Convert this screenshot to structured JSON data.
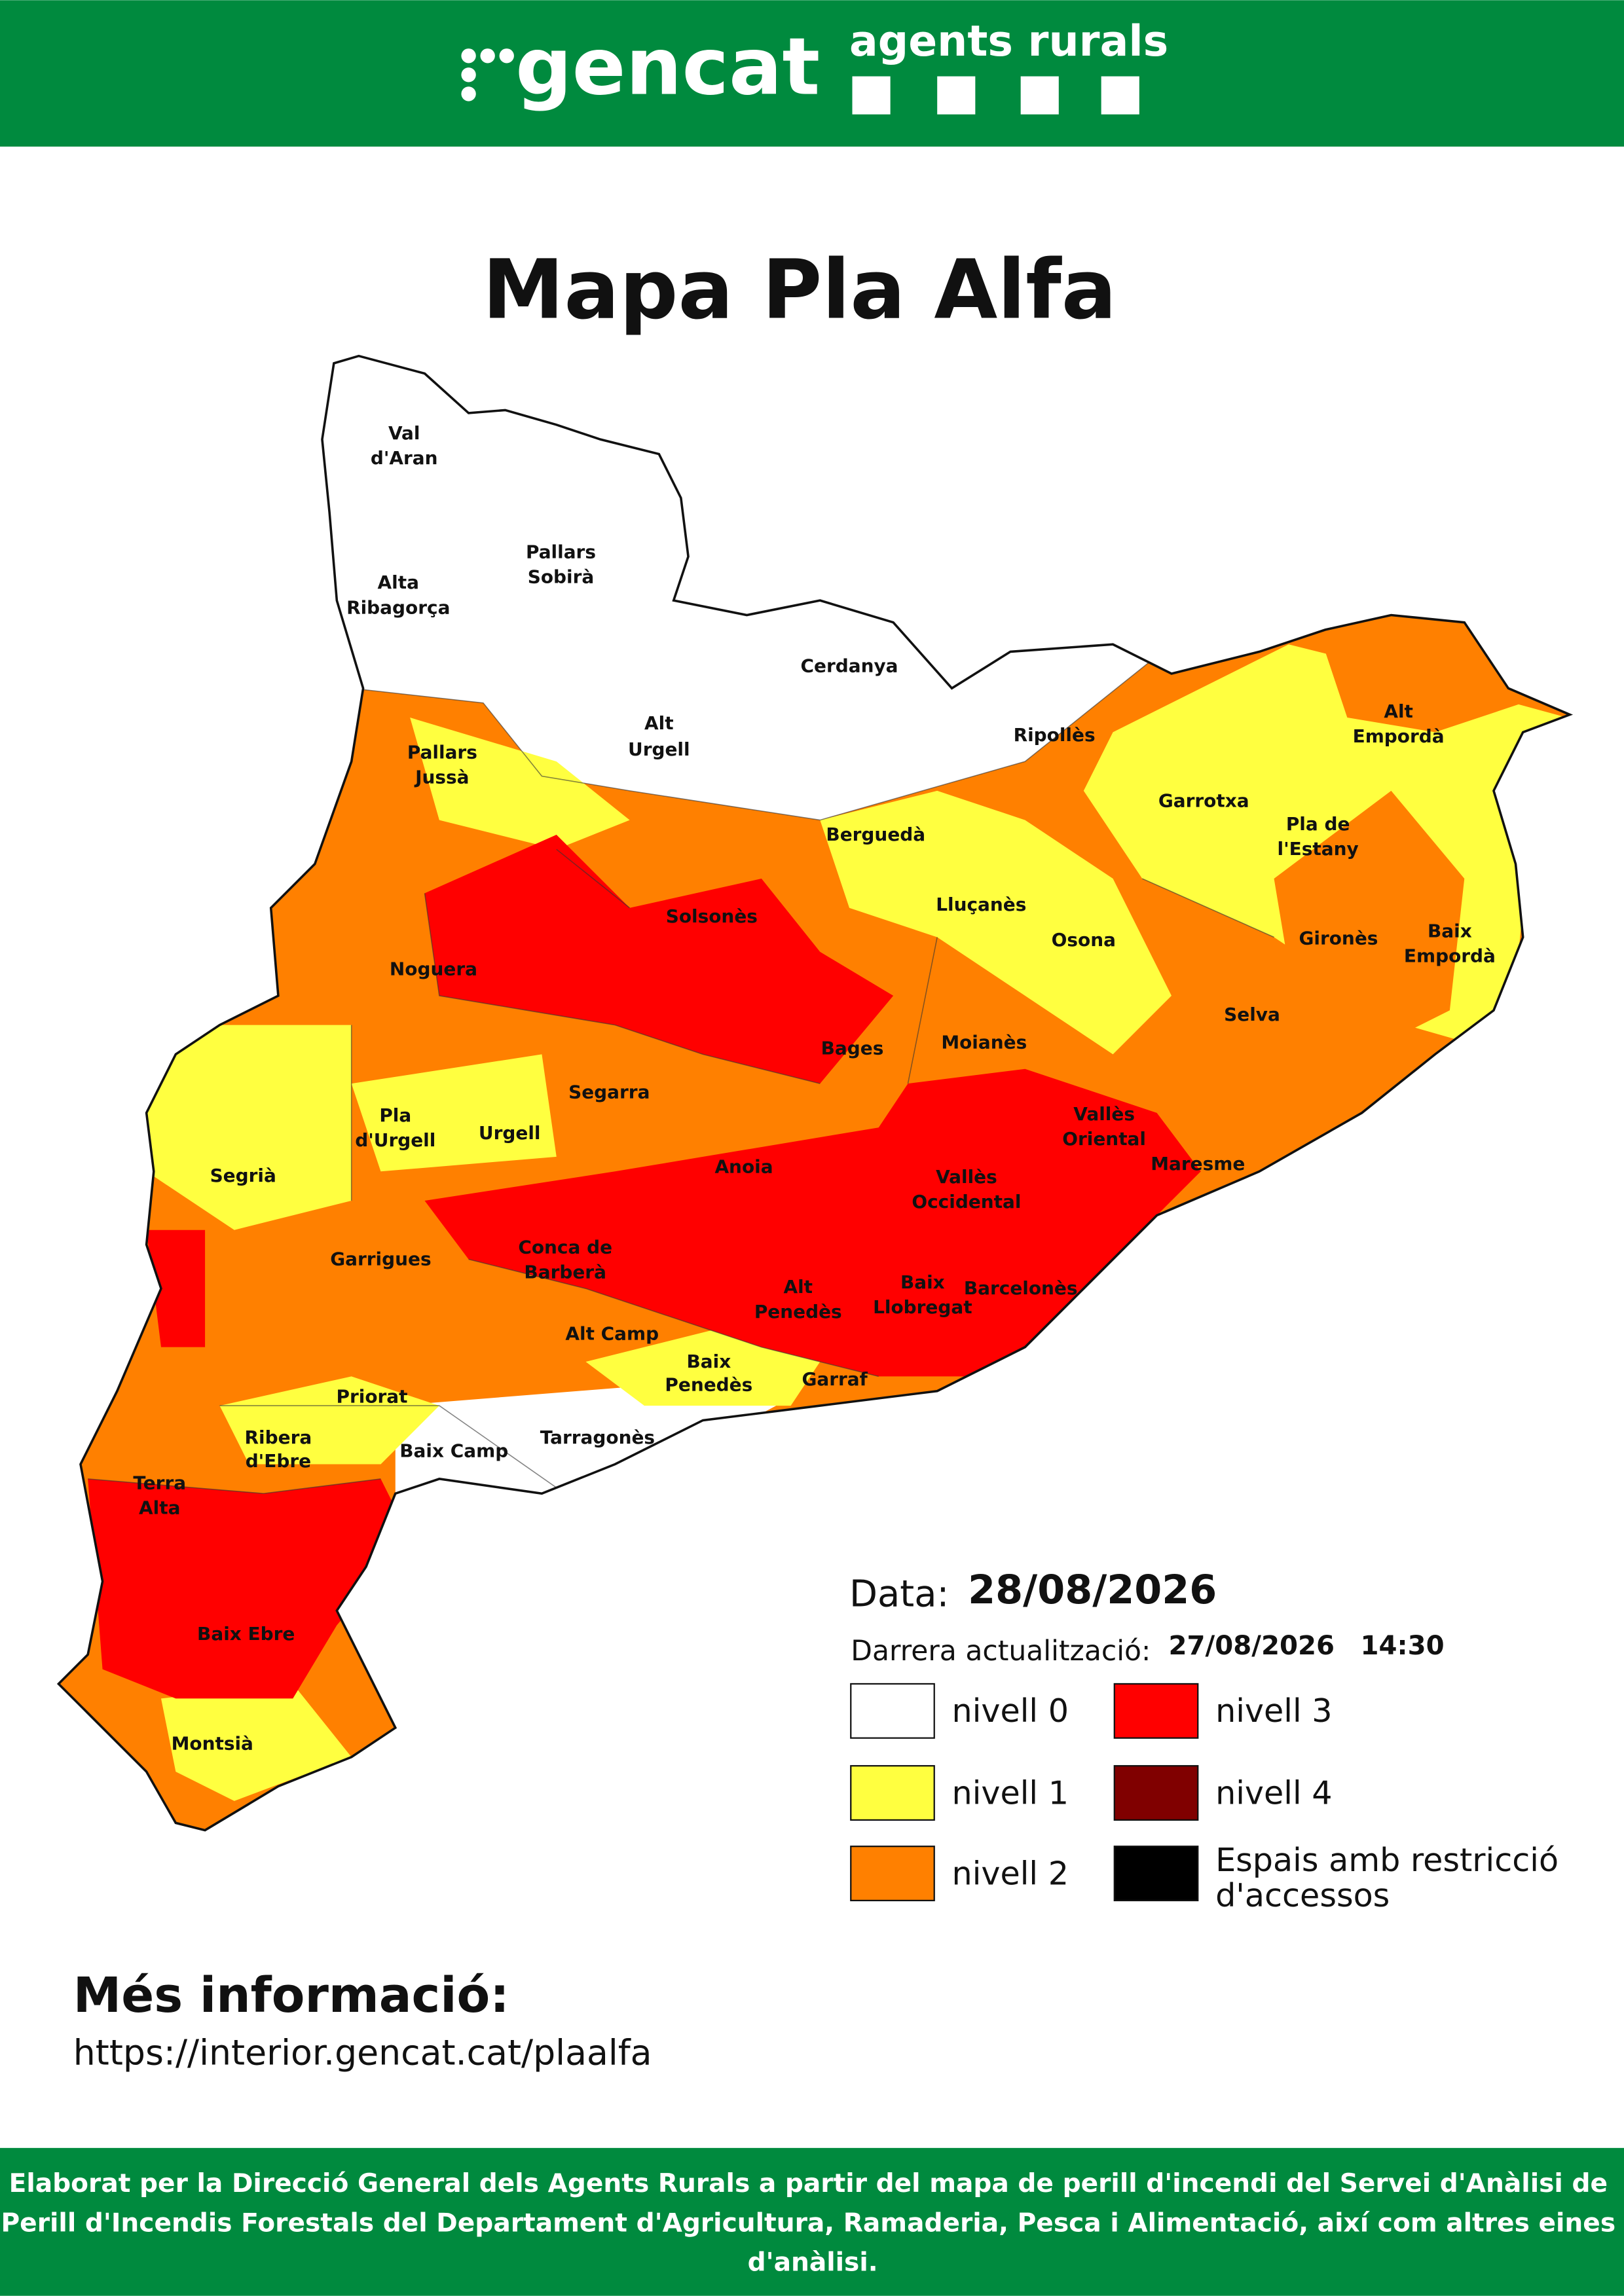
{
  "header": {
    "logo": "gencat",
    "agency": "agents rurals"
  },
  "title": "Mapa Pla Alfa",
  "map": {
    "regions": [
      [
        "Val",
        "d'Aran"
      ],
      [
        "Alta",
        "Ribagorça"
      ],
      [
        "Pallars",
        "Sobirà"
      ],
      [
        "Cerdanya"
      ],
      [
        "Alt",
        "Urgell"
      ],
      [
        "Ripollès"
      ],
      [
        "Alt",
        "Empordà"
      ],
      [
        "Pallars",
        "Jussà"
      ],
      [
        "Garrotxa"
      ],
      [
        "Pla de",
        "l'Estany"
      ],
      [
        "Berguedà"
      ],
      [
        "Solsonès"
      ],
      [
        "Lluçanès"
      ],
      [
        "Osona"
      ],
      [
        "Gironès"
      ],
      [
        "Baix",
        "Empordà"
      ],
      [
        "Noguera"
      ],
      [
        "Selva"
      ],
      [
        "Bages"
      ],
      [
        "Moianès"
      ],
      [
        "Segarra"
      ],
      [
        "Pla",
        "d'Urgell"
      ],
      [
        "Urgell"
      ],
      [
        "Vallès",
        "Oriental"
      ],
      [
        "Segrià"
      ],
      [
        "Anoia"
      ],
      [
        "Maresme"
      ],
      [
        "Vallès",
        "Occidental"
      ],
      [
        "Garrigues"
      ],
      [
        "Conca de",
        "Barberà"
      ],
      [
        "Barcelonès"
      ],
      [
        "Alt",
        "Penedès"
      ],
      [
        "Baix",
        "Llobregat"
      ],
      [
        "Alt Camp"
      ],
      [
        "Baix",
        "Penedès"
      ],
      [
        "Garraf"
      ],
      [
        "Priorat"
      ],
      [
        "Ribera",
        "d'Ebre"
      ],
      [
        "Tarragonès"
      ],
      [
        "Baix Camp"
      ],
      [
        "Terra",
        "Alta"
      ],
      [
        "Baix Ebre"
      ],
      [
        "Montsià"
      ]
    ]
  },
  "date": {
    "label": "Data:",
    "value": "28/08/2026"
  },
  "update": {
    "label": "Darrera actualització:",
    "date": "27/08/2026",
    "time": "14:30"
  },
  "legend": [
    {
      "label": [
        "nivell 0"
      ],
      "color": "#ffffff"
    },
    {
      "label": [
        "nivell 1"
      ],
      "color": "#ffff40"
    },
    {
      "label": [
        "nivell 2"
      ],
      "color": "#ff8000"
    },
    {
      "label": [
        "nivell 3"
      ],
      "color": "#ff0000"
    },
    {
      "label": [
        "nivell 4"
      ],
      "color": "#800000"
    },
    {
      "label": [
        "Espais amb restricció",
        "d'accessos"
      ],
      "color": "#000000"
    }
  ],
  "more_info": {
    "heading": "Més informació:",
    "url": "https://interior.gencat.cat/plaalfa"
  },
  "footer": [
    "Elaborat per la Direcció General dels Agents Rurals a partir del mapa de perill d'incendi del Servei d'Anàlisi de",
    "Perill d'Incendis Forestals del Departament d'Agricultura, Ramaderia, Pesca i Alimentació, així com altres eines",
    "d'anàlisi."
  ]
}
